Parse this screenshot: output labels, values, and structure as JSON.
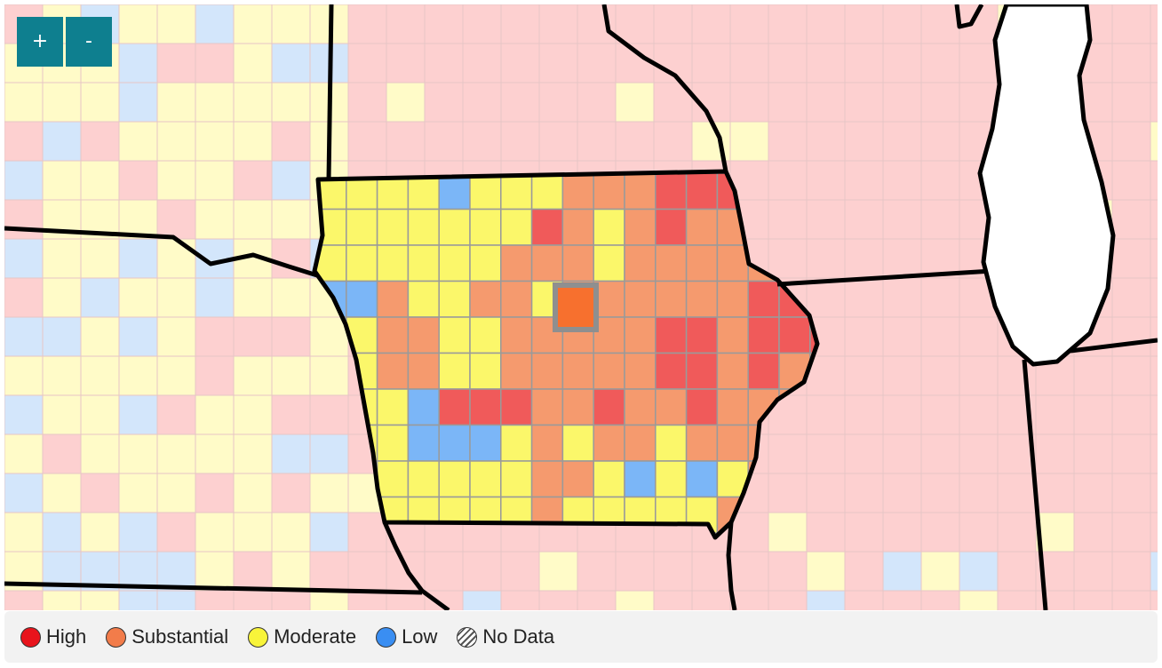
{
  "zoom": {
    "in_label": "+",
    "out_label": "-"
  },
  "colors": {
    "high": "#f05a5a",
    "substantial": "#f59a6e",
    "moderate": "#fbf76a",
    "low": "#7bb6f7",
    "high_faded": "#fdd0d0",
    "moderate_faded": "#fffbc8",
    "low_faded": "#d3e6fb",
    "selected": "#f7702e",
    "lake": "#ffffff"
  },
  "legend": [
    {
      "label": "High",
      "color": "#e8141c"
    },
    {
      "label": "Substantial",
      "color": "#f27c4a"
    },
    {
      "label": "Moderate",
      "color": "#f8f43a"
    },
    {
      "label": "Low",
      "color": "#3a8ef2"
    },
    {
      "label": "No Data",
      "color": "hatched"
    }
  ],
  "iowa_counties": [
    "MMMMLMMMSSSHHHHSS",
    "MMMMMMMHSMSHSSSHS",
    "MMMMMMSSSMSSSSSHS",
    "LLSMMSSMXSSSSSHHH",
    "LMSSMMSSSSSHHSHHH",
    "MMSSMMSSSSSHHSHSS",
    "MMMLHHHSSHSSHSSSS",
    "MMMLLLMSMSSMSSSSS",
    "MMMMMMMSSMLMLMSSS",
    "LMMMMMMSMMMMMSSSS"
  ]
}
